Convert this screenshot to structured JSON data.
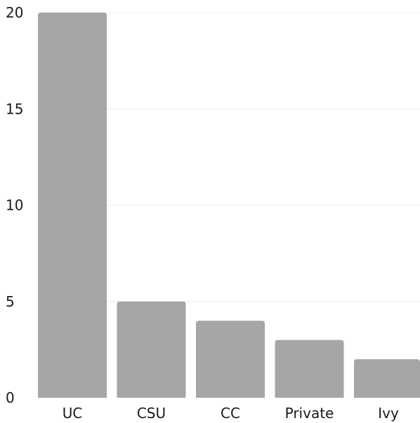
{
  "chart_data": {
    "type": "bar",
    "categories": [
      "UC",
      "CSU",
      "CC",
      "Private",
      "Ivy"
    ],
    "values": [
      20,
      5,
      4,
      3,
      2
    ],
    "yticks": [
      "0",
      "5",
      "10",
      "15",
      "20"
    ],
    "ylim": [
      0,
      20
    ],
    "grid": true,
    "legend": "none",
    "bar_color": "#a6a6a6",
    "grid_color": "#ececec"
  }
}
